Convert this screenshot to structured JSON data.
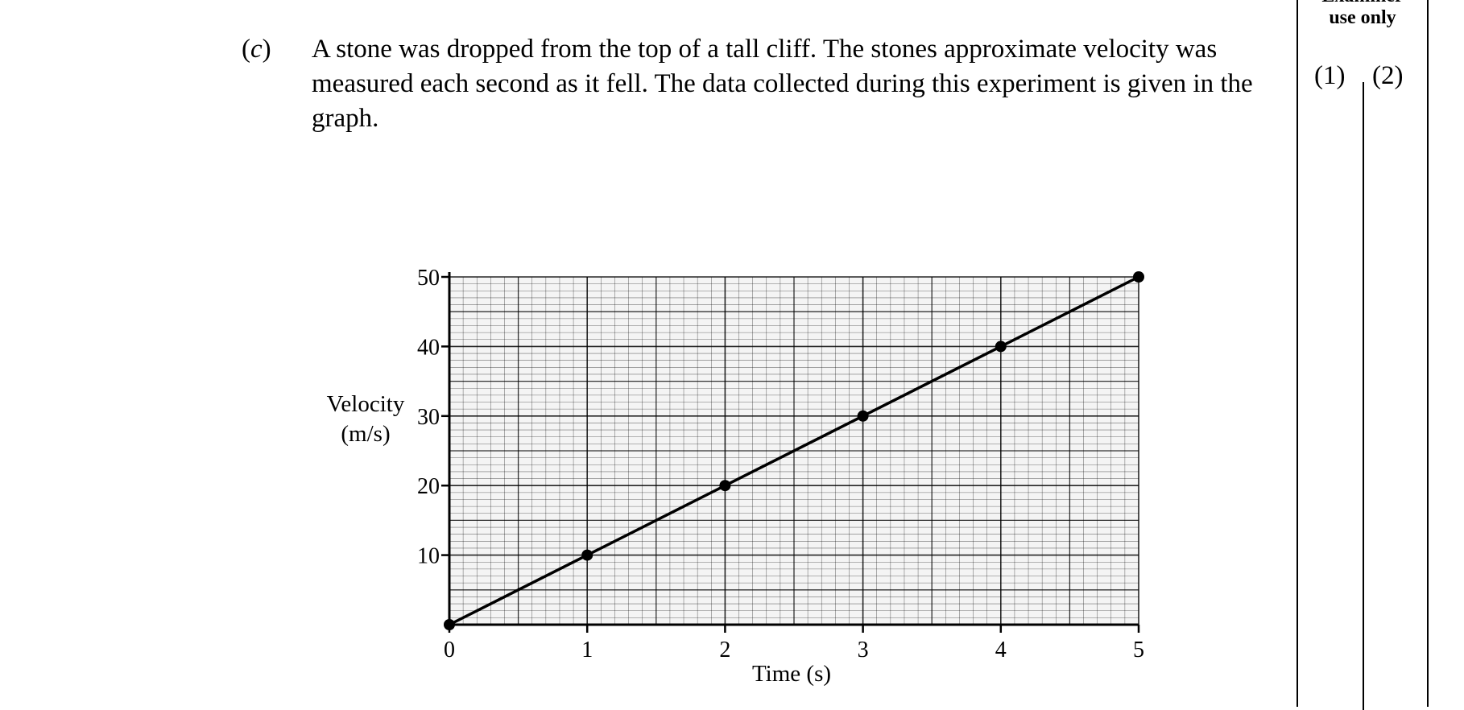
{
  "question": {
    "part": "c",
    "text": "A stone was dropped from the top of a tall cliff. The stones approximate velocity was measured each second as it fell. The data collected during this experiment is given in the graph."
  },
  "examiner": {
    "header_top": "Examiner",
    "header_bottom": "use only",
    "columns": [
      "(1)",
      "(2)"
    ]
  },
  "chart_data": {
    "type": "line",
    "xlabel": "Time (s)",
    "ylabel_line1": "Velocity",
    "ylabel_line2": "(m/s)",
    "x_ticks": [
      "0",
      "1",
      "2",
      "3",
      "4",
      "5"
    ],
    "y_ticks": [
      "10",
      "20",
      "30",
      "40",
      "50"
    ],
    "xlim": [
      0,
      5
    ],
    "ylim": [
      0,
      50
    ],
    "grid": true,
    "series": [
      {
        "points": [
          [
            0,
            0
          ],
          [
            1,
            10
          ],
          [
            2,
            20
          ],
          [
            3,
            30
          ],
          [
            4,
            40
          ],
          [
            5,
            50
          ]
        ]
      }
    ],
    "colors": {
      "line": "#000000",
      "grid": "#000000",
      "grid_bg": "#f4f4f4"
    }
  }
}
